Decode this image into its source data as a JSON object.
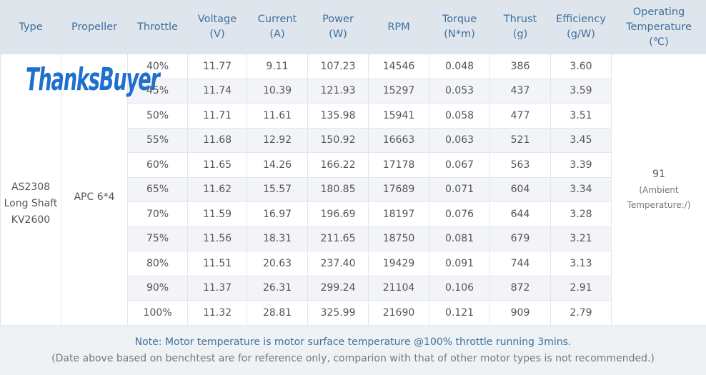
{
  "logo": "ThanksBuyer",
  "header": [
    [
      "Type"
    ],
    [
      "Propeller"
    ],
    [
      "Throttle"
    ],
    [
      "Voltage",
      "(V)"
    ],
    [
      "Current",
      "(A)"
    ],
    [
      "Power",
      "(W)"
    ],
    [
      "RPM"
    ],
    [
      "Torque",
      "(N*m)"
    ],
    [
      "Thrust",
      "(g)"
    ],
    [
      "Efficiency",
      "(g/W)"
    ],
    [
      "Operating",
      "Temperature",
      "(℃)"
    ]
  ],
  "type": [
    "AS2308",
    "Long Shaft",
    "KV2600"
  ],
  "propeller": "APC 6*4",
  "temperature": {
    "value": "91",
    "note": [
      "(Ambient",
      "Temperature:/)"
    ]
  },
  "rows": [
    [
      "40%",
      "11.77",
      "9.11",
      "107.23",
      "14546",
      "0.048",
      "386",
      "3.60"
    ],
    [
      "45%",
      "11.74",
      "10.39",
      "121.93",
      "15297",
      "0.053",
      "437",
      "3.59"
    ],
    [
      "50%",
      "11.71",
      "11.61",
      "135.98",
      "15941",
      "0.058",
      "477",
      "3.51"
    ],
    [
      "55%",
      "11.68",
      "12.92",
      "150.92",
      "16663",
      "0.063",
      "521",
      "3.45"
    ],
    [
      "60%",
      "11.65",
      "14.26",
      "166.22",
      "17178",
      "0.067",
      "563",
      "3.39"
    ],
    [
      "65%",
      "11.62",
      "15.57",
      "180.85",
      "17689",
      "0.071",
      "604",
      "3.34"
    ],
    [
      "70%",
      "11.59",
      "16.97",
      "196.69",
      "18197",
      "0.076",
      "644",
      "3.28"
    ],
    [
      "75%",
      "11.56",
      "18.31",
      "211.65",
      "18750",
      "0.081",
      "679",
      "3.21"
    ],
    [
      "80%",
      "11.51",
      "20.63",
      "237.40",
      "19429",
      "0.091",
      "744",
      "3.13"
    ],
    [
      "90%",
      "11.37",
      "26.31",
      "299.24",
      "21104",
      "0.106",
      "872",
      "2.91"
    ],
    [
      "100%",
      "11.32",
      "28.81",
      "325.99",
      "21690",
      "0.121",
      "909",
      "2.79"
    ]
  ],
  "footer": [
    "Note: Motor temperature is motor surface temperature @100% throttle running 3mins.",
    "(Date above based on benchtest are for reference only, comparion with that of other motor types is not recommended.)"
  ]
}
